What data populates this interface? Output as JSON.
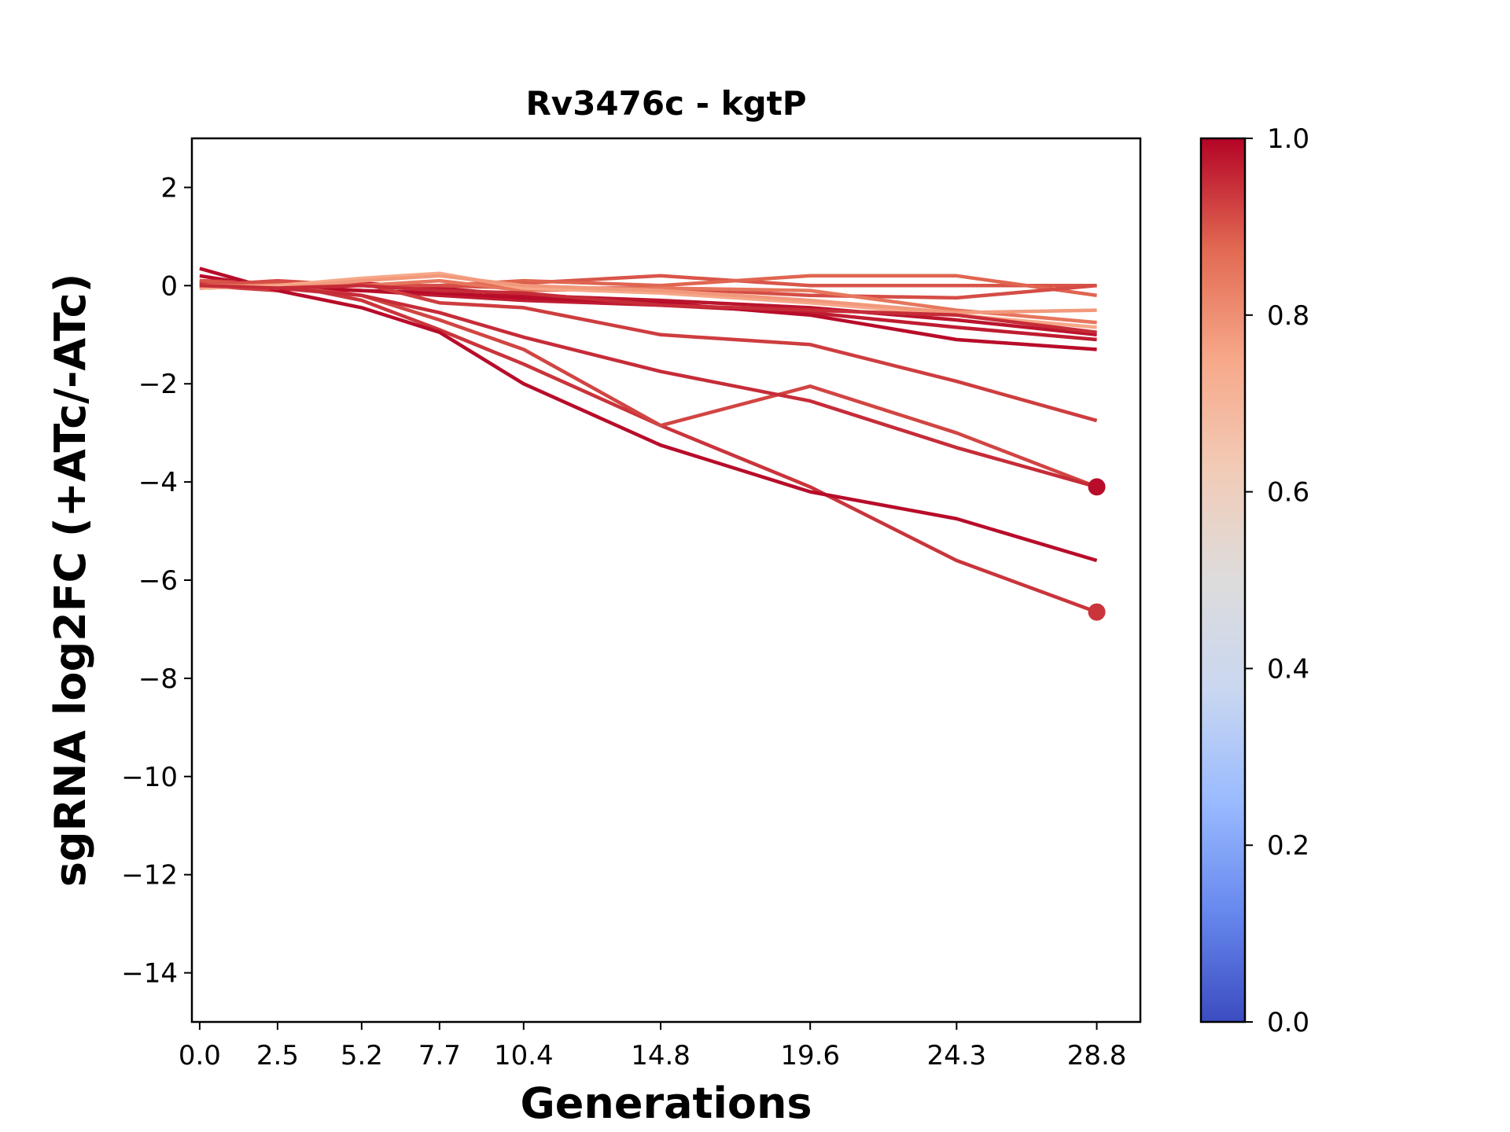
{
  "chart_data": {
    "type": "line",
    "title": "Rv3476c - kgtP",
    "xlabel": "Generations",
    "ylabel": "sgRNA log2FC (+ATc/-ATc)",
    "x": [
      0.0,
      2.5,
      5.2,
      7.7,
      10.4,
      14.8,
      19.6,
      24.3,
      28.8
    ],
    "x_tick_labels": [
      "0.0",
      "2.5",
      "5.2",
      "7.7",
      "10.4",
      "14.8",
      "19.6",
      "24.3",
      "28.8"
    ],
    "ylim": [
      -15,
      3
    ],
    "y_ticks": [
      2,
      0,
      -2,
      -4,
      -6,
      -8,
      -10,
      -12,
      -14
    ],
    "y_tick_labels": [
      "2",
      "0",
      "−2",
      "−4",
      "−6",
      "−8",
      "−10",
      "−12",
      "−14"
    ],
    "grid": false,
    "colorbar": {
      "range": [
        0.0,
        1.0
      ],
      "ticks": [
        0.0,
        0.2,
        0.4,
        0.6,
        0.8,
        1.0
      ],
      "tick_labels": [
        "0.0",
        "0.2",
        "0.4",
        "0.6",
        "0.8",
        "1.0"
      ],
      "colormap": "coolwarm",
      "stops": [
        "#3b4cc0",
        "#6788ee",
        "#9abbff",
        "#c9d7f0",
        "#dddcdc",
        "#f2cbb7",
        "#f7a889",
        "#e26952",
        "#b40426"
      ]
    },
    "series": [
      {
        "color_value": 0.98,
        "values": [
          -0.05,
          0.0,
          0.05,
          -0.05,
          -0.2,
          -0.3,
          -0.45,
          -0.7,
          -1.0
        ]
      },
      {
        "color_value": 0.97,
        "values": [
          0.1,
          0.0,
          -0.1,
          -0.2,
          -0.3,
          -0.4,
          -0.55,
          -0.85,
          -1.1
        ]
      },
      {
        "color_value": 0.99,
        "values": [
          0.2,
          -0.05,
          -0.1,
          -0.15,
          -0.25,
          -0.35,
          -0.6,
          -1.1,
          -1.3
        ]
      },
      {
        "color_value": 0.93,
        "values": [
          0.0,
          -0.1,
          0.05,
          -0.35,
          -0.45,
          -1.0,
          -1.2,
          -1.95,
          -2.75
        ]
      },
      {
        "color_value": 0.94,
        "values": [
          0.1,
          0.05,
          -0.3,
          -0.9,
          -1.6,
          -2.85,
          -4.1,
          -5.6,
          -6.65
        ]
      },
      {
        "color_value": 0.92,
        "values": [
          0.05,
          0.0,
          -0.2,
          -0.7,
          -1.3,
          -2.85,
          -2.05,
          -3.0,
          -4.1
        ]
      },
      {
        "color_value": 0.95,
        "values": [
          0.05,
          -0.05,
          -0.2,
          -0.55,
          -1.05,
          -1.75,
          -2.35,
          -3.3,
          -4.1
        ]
      },
      {
        "color_value": 0.99,
        "values": [
          0.35,
          -0.1,
          -0.45,
          -0.95,
          -2.0,
          -3.25,
          -4.2,
          -4.75,
          -5.6
        ]
      },
      {
        "color_value": 0.9,
        "values": [
          0.1,
          0.0,
          0.0,
          0.0,
          0.05,
          0.2,
          0.0,
          0.0,
          0.0
        ]
      },
      {
        "color_value": 0.88,
        "values": [
          0.0,
          0.05,
          0.0,
          0.0,
          0.1,
          0.0,
          0.2,
          0.2,
          -0.2
        ]
      },
      {
        "color_value": 0.91,
        "values": [
          0.0,
          0.1,
          0.0,
          0.0,
          -0.05,
          -0.05,
          -0.2,
          -0.25,
          0.0
        ]
      },
      {
        "color_value": 0.85,
        "values": [
          0.0,
          0.0,
          0.0,
          0.1,
          -0.1,
          -0.05,
          -0.1,
          -0.5,
          -0.75
        ]
      },
      {
        "color_value": 0.75,
        "values": [
          -0.05,
          0.0,
          0.15,
          0.25,
          -0.05,
          -0.15,
          -0.35,
          -0.6,
          -0.85
        ]
      },
      {
        "color_value": 0.78,
        "values": [
          0.0,
          -0.05,
          0.1,
          0.2,
          0.0,
          -0.1,
          -0.3,
          -0.55,
          -0.5
        ]
      },
      {
        "color_value": 0.95,
        "values": [
          0.0,
          -0.05,
          0.0,
          -0.1,
          -0.15,
          -0.4,
          -0.5,
          -0.6,
          -0.95
        ]
      }
    ],
    "markers": [
      {
        "x": 28.8,
        "y": -4.1,
        "color_value": 0.99
      },
      {
        "x": 28.8,
        "y": -6.65,
        "color_value": 0.94
      }
    ]
  }
}
